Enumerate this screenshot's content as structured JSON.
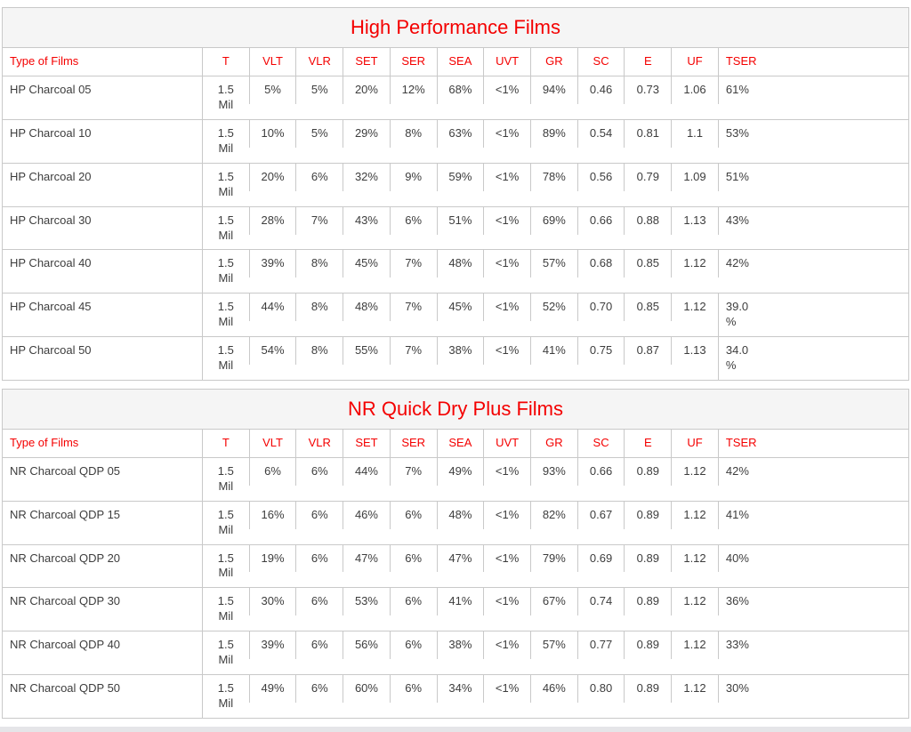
{
  "colors": {
    "accent": "#f40000",
    "body_text": "#3d3d3d",
    "border": "#c9c9c9",
    "title_background": "#f5f5f5"
  },
  "tables": [
    {
      "title": "High Performance Films",
      "columns": [
        "Type of Films",
        "T",
        "VLT",
        "VLR",
        "SET",
        "SER",
        "SEA",
        "UVT",
        "GR",
        "SC",
        "E",
        "UF",
        "TSER"
      ],
      "rows": [
        [
          "HP Charcoal 05",
          "1.5 Mil",
          "5%",
          "5%",
          "20%",
          "12%",
          "68%",
          "<1%",
          "94%",
          "0.46",
          "0.73",
          "1.06",
          "61%"
        ],
        [
          "HP Charcoal 10",
          "1.5 Mil",
          "10%",
          "5%",
          "29%",
          "8%",
          "63%",
          "<1%",
          "89%",
          "0.54",
          "0.81",
          "1.1",
          "53%"
        ],
        [
          "HP Charcoal 20",
          "1.5 Mil",
          "20%",
          "6%",
          "32%",
          "9%",
          "59%",
          "<1%",
          "78%",
          "0.56",
          "0.79",
          "1.09",
          "51%"
        ],
        [
          "HP Charcoal 30",
          "1.5 Mil",
          "28%",
          "7%",
          "43%",
          "6%",
          "51%",
          "<1%",
          "69%",
          "0.66",
          "0.88",
          "1.13",
          "43%"
        ],
        [
          "HP Charcoal 40",
          "1.5 Mil",
          "39%",
          "8%",
          "45%",
          "7%",
          "48%",
          "<1%",
          "57%",
          "0.68",
          "0.85",
          "1.12",
          "42%"
        ],
        [
          "HP Charcoal 45",
          "1.5 Mil",
          "44%",
          "8%",
          "48%",
          "7%",
          "45%",
          "<1%",
          "52%",
          "0.70",
          "0.85",
          "1.12",
          "39.0\n%"
        ],
        [
          "HP Charcoal 50",
          "1.5 Mil",
          "54%",
          "8%",
          "55%",
          "7%",
          "38%",
          "<1%",
          "41%",
          "0.75",
          "0.87",
          "1.13",
          "34.0\n%"
        ]
      ]
    },
    {
      "title": "NR Quick Dry Plus Films",
      "columns": [
        "Type of Films",
        "T",
        "VLT",
        "VLR",
        "SET",
        "SER",
        "SEA",
        "UVT",
        "GR",
        "SC",
        "E",
        "UF",
        "TSER"
      ],
      "rows": [
        [
          "NR Charcoal QDP 05",
          "1.5 Mil",
          "6%",
          "6%",
          "44%",
          "7%",
          "49%",
          "<1%",
          "93%",
          "0.66",
          "0.89",
          "1.12",
          "42%"
        ],
        [
          "NR Charcoal QDP 15",
          "1.5 Mil",
          "16%",
          "6%",
          "46%",
          "6%",
          "48%",
          "<1%",
          "82%",
          "0.67",
          "0.89",
          "1.12",
          "41%"
        ],
        [
          "NR Charcoal QDP 20",
          "1.5 Mil",
          "19%",
          "6%",
          "47%",
          "6%",
          "47%",
          "<1%",
          "79%",
          "0.69",
          "0.89",
          "1.12",
          "40%"
        ],
        [
          "NR Charcoal QDP 30",
          "1.5 Mil",
          "30%",
          "6%",
          "53%",
          "6%",
          "41%",
          "<1%",
          "67%",
          "0.74",
          "0.89",
          "1.12",
          "36%"
        ],
        [
          "NR Charcoal QDP 40",
          "1.5 Mil",
          "39%",
          "6%",
          "56%",
          "6%",
          "38%",
          "<1%",
          "57%",
          "0.77",
          "0.89",
          "1.12",
          "33%"
        ],
        [
          "NR Charcoal QDP 50",
          "1.5 Mil",
          "49%",
          "6%",
          "60%",
          "6%",
          "34%",
          "<1%",
          "46%",
          "0.80",
          "0.89",
          "1.12",
          "30%"
        ]
      ]
    }
  ]
}
